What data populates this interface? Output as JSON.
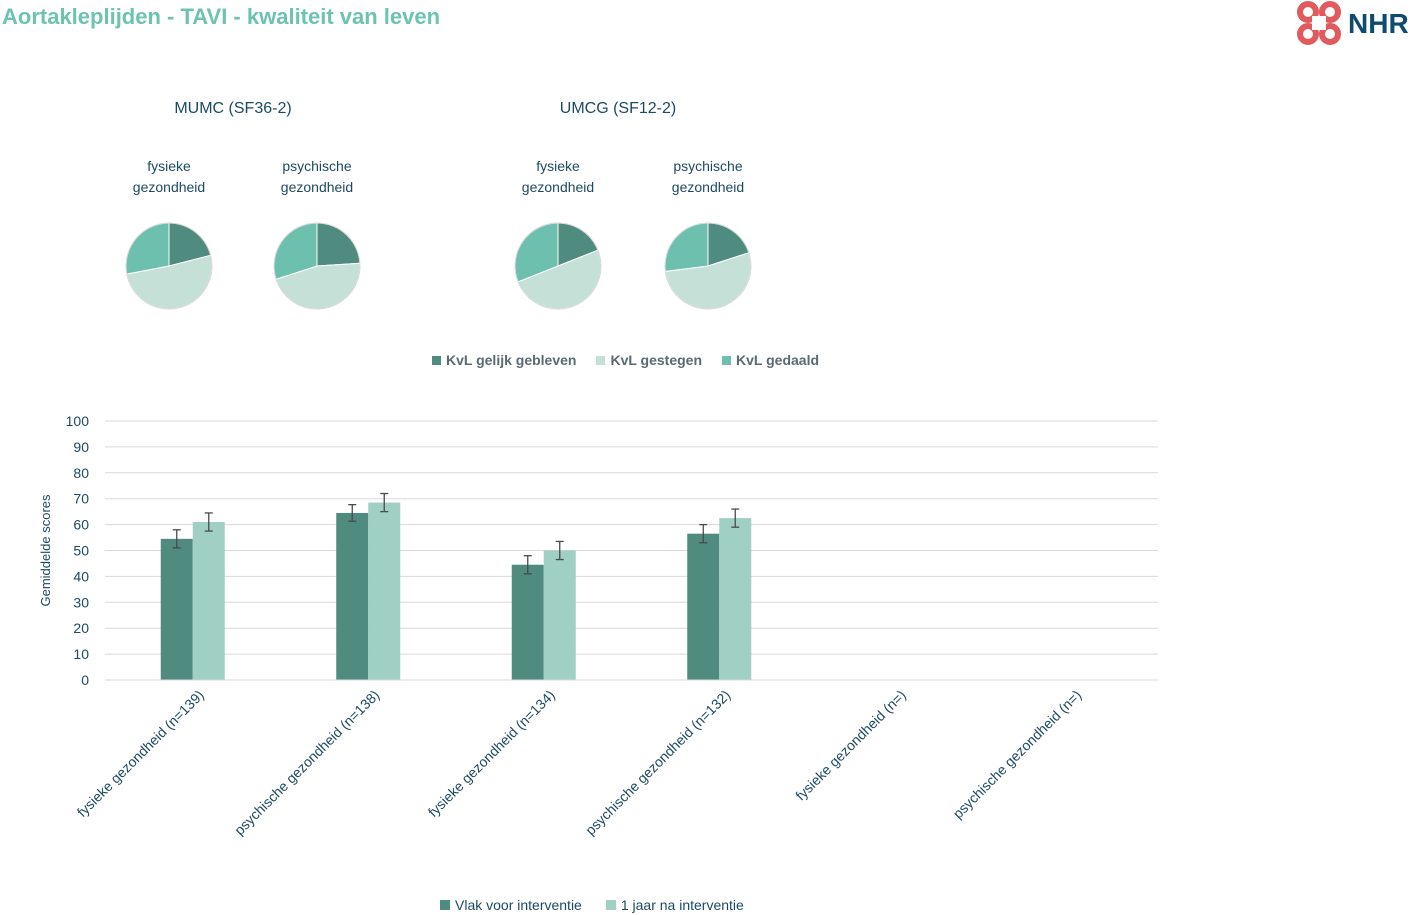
{
  "header": {
    "title": "Aortakleplijden - TAVI - kwaliteit van leven",
    "logo_text": "NHR"
  },
  "colors": {
    "title": "#6cc3b0",
    "dark_green": "#4f8b7e",
    "light_green": "#c4e0d7",
    "mid_green": "#6cc0ad",
    "bar_dark": "#4f8b7e",
    "bar_light": "#9fd0c3",
    "logo_red": "#e05a5e",
    "logo_navy": "#0e4b6e"
  },
  "chart_data": [
    {
      "type": "pie",
      "groups": [
        {
          "title": "MUMC (SF36-2)",
          "pies": [
            {
              "label_lines": [
                "fysieke",
                "gezondheid"
              ],
              "values": [
                21,
                51,
                28
              ]
            },
            {
              "label_lines": [
                "psychische",
                "gezondheid"
              ],
              "values": [
                24,
                46,
                30
              ]
            }
          ]
        },
        {
          "title": "UMCG (SF12-2)",
          "pies": [
            {
              "label_lines": [
                "fysieke",
                "gezondheid"
              ],
              "values": [
                19,
                50,
                31
              ]
            },
            {
              "label_lines": [
                "psychische",
                "gezondheid"
              ],
              "values": [
                20,
                53,
                27
              ]
            }
          ]
        }
      ],
      "legend": [
        "KvL gelijk gebleven",
        "KvL gestegen",
        "KvL gedaald"
      ]
    },
    {
      "type": "bar",
      "ylabel": "Gemiddelde scores",
      "ylim": [
        0,
        100
      ],
      "yticks": [
        0,
        10,
        20,
        30,
        40,
        50,
        60,
        70,
        80,
        90,
        100
      ],
      "grid": true,
      "categories": [
        "fysieke gezondheid (n=139)",
        "psychische gezondheid (n=138)",
        "fysieke gezondheid (n=134)",
        "psychische gezondheid (n=132)",
        "fysieke gezondheid (n=)",
        "psychische gezondheid (n=)"
      ],
      "series": [
        {
          "name": "Vlak voor interventie",
          "values": [
            54.5,
            64.5,
            44.5,
            56.5,
            null,
            null
          ],
          "error": [
            3.5,
            3.2,
            3.5,
            3.5,
            null,
            null
          ]
        },
        {
          "name": "1 jaar na interventie",
          "values": [
            61,
            68.5,
            50,
            62.5,
            null,
            null
          ],
          "error": [
            3.5,
            3.5,
            3.5,
            3.5,
            null,
            null
          ]
        }
      ]
    }
  ]
}
